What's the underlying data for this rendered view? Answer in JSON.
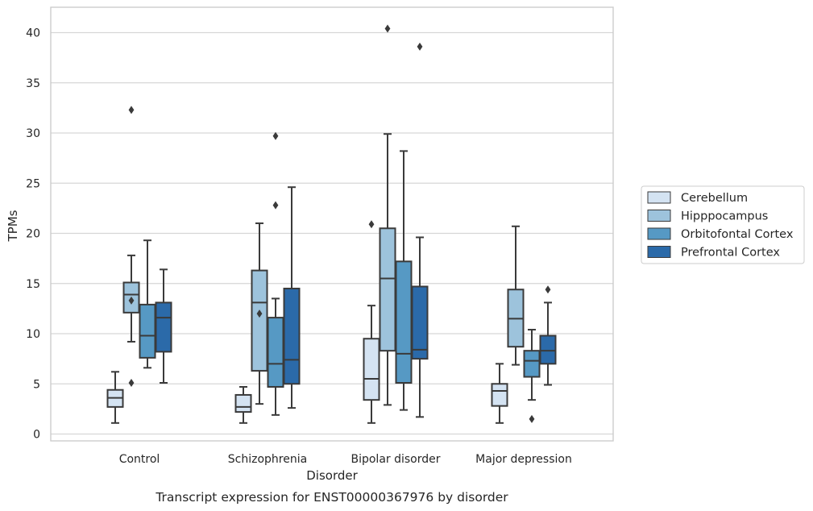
{
  "chart_data": {
    "type": "boxplot",
    "caption": "Transcript expression for ENST00000367976 by disorder",
    "xlabel": "Disorder",
    "ylabel": "TPMs",
    "ylim": [
      -0.8,
      42.4
    ],
    "yticks": [
      0,
      5,
      10,
      15,
      20,
      25,
      30,
      35,
      40
    ],
    "grid": true,
    "legend_position": "right",
    "categories": [
      "Control",
      "Schizophrenia",
      "Bipolar disorder",
      "Major depression"
    ],
    "series": [
      {
        "name": "Cerebellum",
        "color": "#d4e3f2",
        "boxes": [
          {
            "whislo": 1.1,
            "q1": 2.7,
            "med": 3.6,
            "q3": 4.4,
            "whishi": 6.2,
            "fliers": []
          },
          {
            "whislo": 1.1,
            "q1": 2.2,
            "med": 2.7,
            "q3": 3.9,
            "whishi": 4.7,
            "fliers": []
          },
          {
            "whislo": 1.1,
            "q1": 3.4,
            "med": 5.5,
            "q3": 9.5,
            "whishi": 12.8,
            "fliers": [
              20.9
            ]
          },
          {
            "whislo": 1.1,
            "q1": 2.8,
            "med": 4.3,
            "q3": 5.0,
            "whishi": 7.0,
            "fliers": []
          }
        ]
      },
      {
        "name": "Hipppocampus",
        "color": "#9dc3dc",
        "boxes": [
          {
            "whislo": 9.2,
            "q1": 12.1,
            "med": 13.9,
            "q3": 15.1,
            "whishi": 17.8,
            "fliers": [
              13.3,
              5.1,
              32.3
            ]
          },
          {
            "whislo": 3.0,
            "q1": 6.3,
            "med": 13.1,
            "q3": 16.3,
            "whishi": 21.0,
            "fliers": [
              12.0
            ]
          },
          {
            "whislo": 2.9,
            "q1": 8.3,
            "med": 15.5,
            "q3": 20.5,
            "whishi": 29.9,
            "fliers": [
              40.4
            ]
          },
          {
            "whislo": 6.9,
            "q1": 8.7,
            "med": 11.5,
            "q3": 14.4,
            "whishi": 20.7,
            "fliers": []
          }
        ]
      },
      {
        "name": "Orbitofontal Cortex",
        "color": "#5699c4",
        "boxes": [
          {
            "whislo": 6.6,
            "q1": 7.6,
            "med": 9.8,
            "q3": 12.9,
            "whishi": 19.3,
            "fliers": []
          },
          {
            "whislo": 1.9,
            "q1": 4.7,
            "med": 7.0,
            "q3": 11.6,
            "whishi": 13.5,
            "fliers": [
              22.8,
              29.7
            ]
          },
          {
            "whislo": 2.4,
            "q1": 5.1,
            "med": 8.0,
            "q3": 17.2,
            "whishi": 28.2,
            "fliers": []
          },
          {
            "whislo": 3.4,
            "q1": 5.7,
            "med": 7.3,
            "q3": 8.3,
            "whishi": 10.4,
            "fliers": [
              1.5
            ]
          }
        ]
      },
      {
        "name": "Prefrontal Cortex",
        "color": "#2b6aa9",
        "boxes": [
          {
            "whislo": 5.1,
            "q1": 8.2,
            "med": 11.6,
            "q3": 13.1,
            "whishi": 16.4,
            "fliers": []
          },
          {
            "whislo": 2.6,
            "q1": 5.0,
            "med": 7.4,
            "q3": 14.5,
            "whishi": 24.6,
            "fliers": []
          },
          {
            "whislo": 1.7,
            "q1": 7.5,
            "med": 8.4,
            "q3": 14.7,
            "whishi": 19.6,
            "fliers": [
              38.6
            ]
          },
          {
            "whislo": 4.9,
            "q1": 7.0,
            "med": 8.3,
            "q3": 9.8,
            "whishi": 13.1,
            "fliers": [
              14.4
            ]
          }
        ]
      }
    ]
  }
}
